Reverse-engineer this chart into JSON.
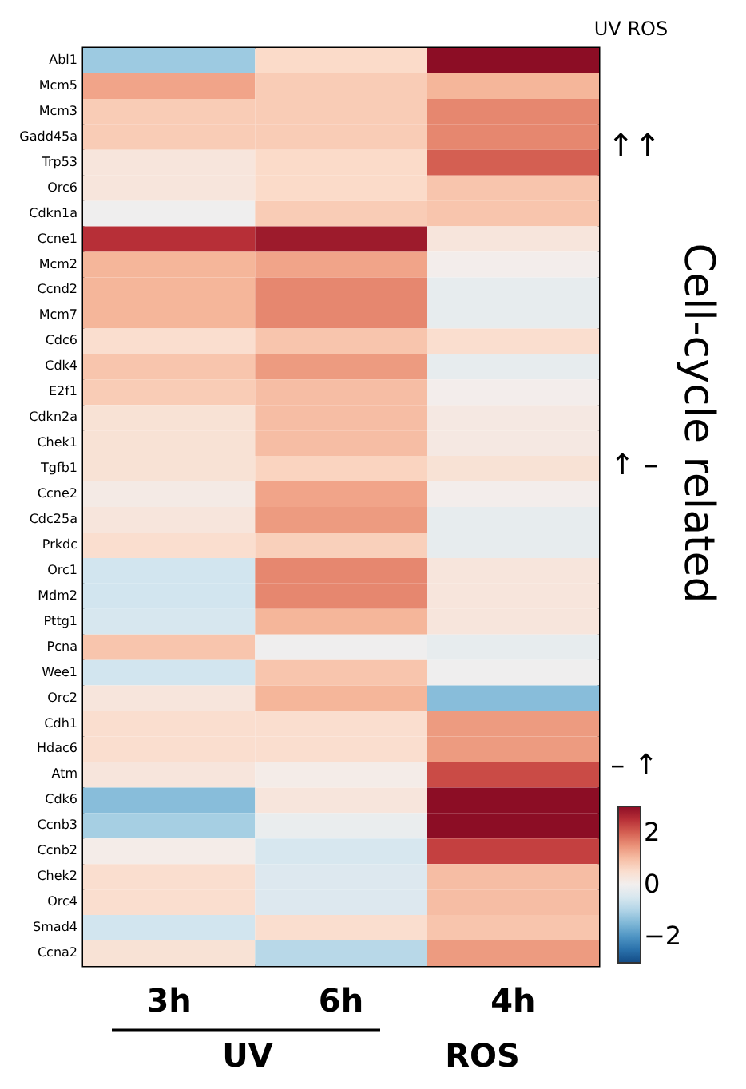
{
  "chart_data": {
    "type": "heatmap",
    "categories": [
      "3h",
      "6h",
      "4h"
    ],
    "y_categories": [
      "Abl1",
      "Mcm5",
      "Mcm3",
      "Gadd45a",
      "Trp53",
      "Orc6",
      "Cdkn1a",
      "Ccne1",
      "Mcm2",
      "Ccnd2",
      "Mcm7",
      "Cdc6",
      "Cdk4",
      "E2f1",
      "Cdkn2a",
      "Chek1",
      "Tgfb1",
      "Ccne2",
      "Cdc25a",
      "Prkdc",
      "Orc1",
      "Mdm2",
      "Pttg1",
      "Pcna",
      "Wee1",
      "Orc2",
      "Cdh1",
      "Hdac6",
      "Atm",
      "Cdk6",
      "Ccnb3",
      "Ccnb2",
      "Chek2",
      "Orc4",
      "Smad4",
      "Ccna2"
    ],
    "cells": [
      [
        -1.2,
        0.6,
        3
      ],
      [
        1.3,
        0.8,
        1.1
      ],
      [
        0.8,
        0.8,
        1.6
      ],
      [
        0.8,
        0.8,
        1.6
      ],
      [
        0.3,
        0.6,
        2.0
      ],
      [
        0.3,
        0.6,
        0.9
      ],
      [
        -0.05,
        0.8,
        0.9
      ],
      [
        2.5,
        2.8,
        0.3
      ],
      [
        1.1,
        1.3,
        0.05
      ],
      [
        1.1,
        1.6,
        -0.2
      ],
      [
        1.1,
        1.6,
        -0.2
      ],
      [
        0.5,
        0.9,
        0.5
      ],
      [
        0.9,
        1.4,
        -0.2
      ],
      [
        0.8,
        1.0,
        0.05
      ],
      [
        0.4,
        1.0,
        0.2
      ],
      [
        0.4,
        1.0,
        0.2
      ],
      [
        0.4,
        0.7,
        0.4
      ],
      [
        0.15,
        1.3,
        0.05
      ],
      [
        0.3,
        1.4,
        -0.2
      ],
      [
        0.5,
        0.75,
        -0.2
      ],
      [
        -0.6,
        1.6,
        0.3
      ],
      [
        -0.6,
        1.6,
        0.3
      ],
      [
        -0.5,
        1.1,
        0.3
      ],
      [
        0.9,
        -0.05,
        -0.2
      ],
      [
        -0.6,
        0.9,
        -0.05
      ],
      [
        0.3,
        1.1,
        -1.4
      ],
      [
        0.5,
        0.5,
        1.4
      ],
      [
        0.5,
        0.5,
        1.4
      ],
      [
        0.3,
        0.1,
        2.2
      ],
      [
        -1.4,
        0.3,
        3
      ],
      [
        -1.1,
        -0.15,
        3
      ],
      [
        0.1,
        -0.5,
        2.3
      ],
      [
        0.5,
        -0.4,
        1.0
      ],
      [
        0.5,
        -0.4,
        1.0
      ],
      [
        -0.6,
        0.5,
        0.9
      ],
      [
        0.4,
        -0.9,
        1.4
      ]
    ],
    "clim": [
      -3,
      3
    ],
    "cticks": [
      -2,
      0,
      2
    ],
    "annotations": [
      "UV ROS",
      "↑↑",
      "Cell-cycle related",
      "↑ –",
      "– ↑",
      "UV",
      "ROS"
    ]
  }
}
